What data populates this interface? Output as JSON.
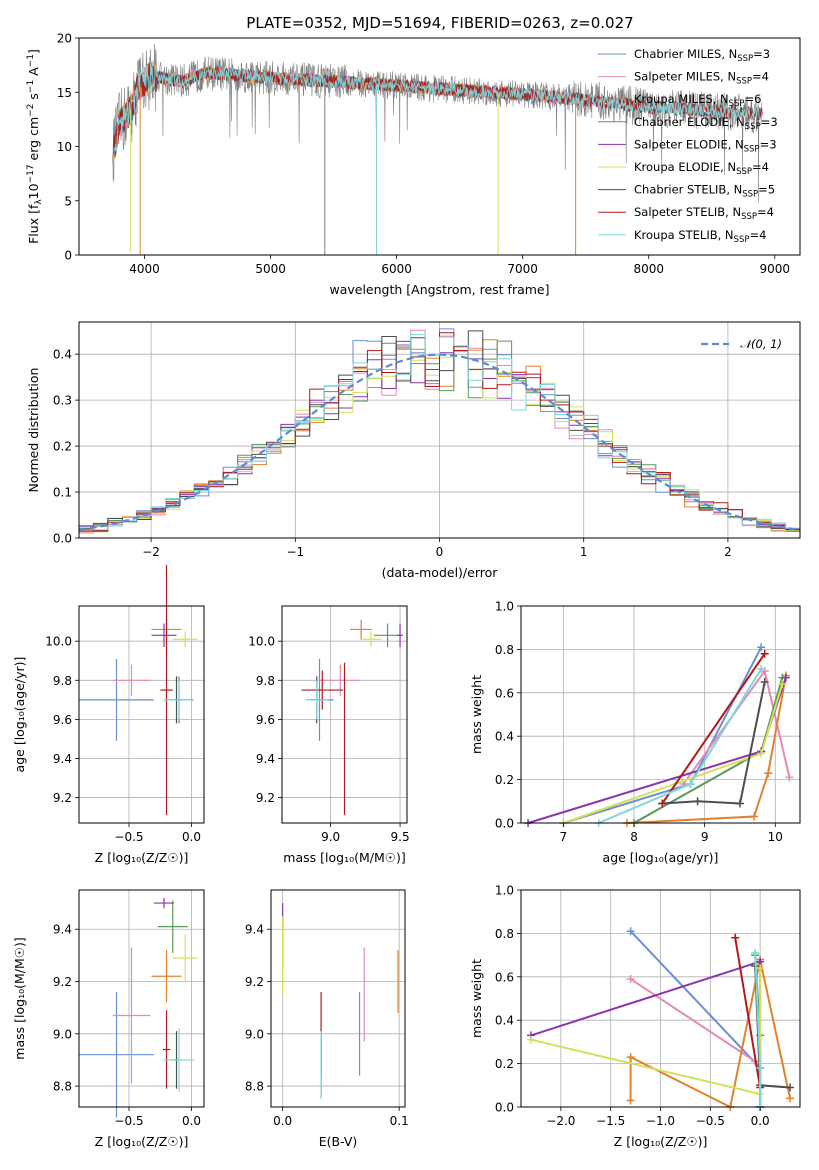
{
  "title": "PLATE=0352, MJD=51694, FIBERID=0263, z=0.027",
  "colors": {
    "chabrier_miles": "#6a8fd6",
    "salpeter_miles": "#e58ab2",
    "kroupa_miles": "#e0822e",
    "chabrier_elodie": "#5a9a5a",
    "salpeter_elodie": "#8a35ad",
    "kroupa_elodie": "#d4e157",
    "chabrier_stelib": "#4d4d4d",
    "salpeter_stelib": "#b21a1a",
    "kroupa_stelib": "#7fd6dc",
    "spectrum_data": "#808080",
    "normal_curve": "#5b8bd6",
    "grid": "#b0b0b0"
  },
  "chart_data": [
    {
      "id": "spectrum",
      "type": "line",
      "xlabel": "wavelength [Angstrom, rest frame]",
      "ylabel": "Flux [f_λ10^-17 erg cm^-2 s^-1 A^-1]",
      "xlim": [
        3480,
        9200
      ],
      "ylim": [
        0,
        20
      ],
      "xticks": [
        4000,
        5000,
        6000,
        7000,
        8000,
        9000
      ],
      "yticks": [
        0,
        5,
        10,
        15,
        20
      ],
      "grid": false,
      "legend_position": "upper-right",
      "legend": [
        {
          "label": "Chabrier MILES, N",
          "sub": "SSP",
          "tail": "=3",
          "key": "chabrier_miles"
        },
        {
          "label": "Salpeter MILES, N",
          "sub": "SSP",
          "tail": "=4",
          "key": "salpeter_miles"
        },
        {
          "label": "Kroupa MILES, N",
          "sub": "SSP",
          "tail": "=6",
          "key": "kroupa_miles"
        },
        {
          "label": "Chabrier ELODIE, N",
          "sub": "SSP",
          "tail": "=3",
          "key": "chabrier_elodie"
        },
        {
          "label": "Salpeter ELODIE, N",
          "sub": "SSP",
          "tail": "=3",
          "key": "salpeter_elodie"
        },
        {
          "label": "Kroupa ELODIE, N",
          "sub": "SSP",
          "tail": "=4",
          "key": "kroupa_elodie"
        },
        {
          "label": "Chabrier STELIB, N",
          "sub": "SSP",
          "tail": "=5",
          "key": "chabrier_stelib"
        },
        {
          "label": "Salpeter STELIB, N",
          "sub": "SSP",
          "tail": "=4",
          "key": "salpeter_stelib"
        },
        {
          "label": "Kroupa STELIB, N",
          "sub": "SSP",
          "tail": "=4",
          "key": "kroupa_stelib"
        }
      ],
      "data_range": [
        3750,
        8900
      ],
      "model_ranges": {
        "chabrier_miles": [
          3750,
          7410
        ],
        "salpeter_miles": [
          3750,
          7410
        ],
        "kroupa_miles": [
          3750,
          7410
        ],
        "chabrier_elodie": [
          3750,
          6800
        ],
        "salpeter_elodie": [
          3750,
          6800
        ],
        "kroupa_elodie": [
          3750,
          6800
        ],
        "chabrier_stelib": [
          3750,
          8900
        ],
        "salpeter_stelib": [
          3750,
          8900
        ],
        "kroupa_stelib": [
          3750,
          8900
        ]
      },
      "continuum": [
        [
          3750,
          9.5
        ],
        [
          3800,
          12.0
        ],
        [
          3900,
          13.5
        ],
        [
          3950,
          15.5
        ],
        [
          4050,
          16.5
        ],
        [
          4300,
          16.0
        ],
        [
          4500,
          16.8
        ],
        [
          5000,
          16.3
        ],
        [
          5500,
          16.0
        ],
        [
          6000,
          15.6
        ],
        [
          6500,
          15.2
        ],
        [
          7000,
          14.8
        ],
        [
          7500,
          14.3
        ],
        [
          8000,
          13.6
        ],
        [
          8500,
          13.3
        ],
        [
          8900,
          13.0
        ]
      ],
      "drops": [
        {
          "x": 3890,
          "y": 0.3,
          "key": "kroupa_elodie"
        },
        {
          "x": 3965,
          "y": 0.0,
          "key": "kroupa_miles"
        },
        {
          "x": 5430,
          "y": 0.0,
          "key": "spectrum_data"
        },
        {
          "x": 5840,
          "y": 0.0,
          "key": "kroupa_stelib"
        },
        {
          "x": 6805,
          "y": 0.0,
          "key": "kroupa_elodie"
        },
        {
          "x": 7420,
          "y": 0.0,
          "key": "kroupa_miles"
        }
      ]
    },
    {
      "id": "residuals",
      "type": "histogram",
      "xlabel": "(data-model)/error",
      "ylabel": "Normed distribution",
      "xlim": [
        -2.5,
        2.5
      ],
      "ylim": [
        0,
        0.47
      ],
      "xticks": [
        -2,
        -1,
        0,
        1,
        2
      ],
      "yticks": [
        0,
        0.1,
        0.2,
        0.3,
        0.4
      ],
      "grid": true,
      "legend_position": "upper-right",
      "legend": [
        {
          "label": "𝒩(0, 1)",
          "key": "normal_curve"
        }
      ],
      "bin_width": 0.1
    },
    {
      "id": "age-vs-z",
      "type": "errorbar",
      "xlabel": "Z [log₁₀(Z/Z☉)]",
      "ylabel": "age  [log₁₀(age/yr)]",
      "xlim": [
        -0.9,
        0.1
      ],
      "ylim": [
        9.07,
        10.18
      ],
      "xticks": [
        -0.5,
        0.0
      ],
      "yticks": [
        9.2,
        9.4,
        9.6,
        9.8,
        10.0
      ],
      "grid": true,
      "points": [
        {
          "key": "chabrier_miles",
          "x": -0.6,
          "y": 9.7,
          "xerr": 0.3,
          "yerr": 0.21
        },
        {
          "key": "salpeter_miles",
          "x": -0.48,
          "y": 9.8,
          "xerr": 0.15,
          "yerr": 0.08
        },
        {
          "key": "kroupa_miles",
          "x": -0.2,
          "y": 10.06,
          "xerr": 0.12,
          "yerr": 0.05
        },
        {
          "key": "chabrier_elodie",
          "x": -0.1,
          "y": 9.7,
          "xerr": 0.12,
          "yerr": 0.12
        },
        {
          "key": "salpeter_elodie",
          "x": -0.22,
          "y": 10.03,
          "xerr": 0.1,
          "yerr": 0.06
        },
        {
          "key": "kroupa_elodie",
          "x": -0.05,
          "y": 10.01,
          "xerr": 0.1,
          "yerr": 0.04
        },
        {
          "key": "chabrier_stelib",
          "x": -0.12,
          "y": 9.7,
          "xerr": 0.04,
          "yerr": 0.12
        },
        {
          "key": "salpeter_stelib",
          "x": -0.2,
          "y": 9.75,
          "xerr": 0.05,
          "yerr": 0.64
        },
        {
          "key": "kroupa_stelib",
          "x": -0.1,
          "y": 9.7,
          "xerr": 0.12,
          "yerr": 0.1
        }
      ]
    },
    {
      "id": "age-vs-mass",
      "type": "errorbar",
      "xlabel": "mass [log₁₀(M/M☉)]",
      "ylabel": "",
      "xlim": [
        8.65,
        9.55
      ],
      "ylim": [
        9.07,
        10.18
      ],
      "xticks": [
        9.0,
        9.5
      ],
      "yticks": [
        9.2,
        9.4,
        9.6,
        9.8,
        10.0
      ],
      "grid": true,
      "points": [
        {
          "key": "chabrier_miles",
          "x": 8.92,
          "y": 9.7,
          "xerr": 0.1,
          "yerr": 0.21
        },
        {
          "key": "salpeter_miles",
          "x": 9.07,
          "y": 9.8,
          "xerr": 0.15,
          "yerr": 0.08
        },
        {
          "key": "kroupa_miles",
          "x": 9.22,
          "y": 10.06,
          "xerr": 0.08,
          "yerr": 0.05
        },
        {
          "key": "chabrier_elodie",
          "x": 9.41,
          "y": 10.03,
          "xerr": 0.1,
          "yerr": 0.06
        },
        {
          "key": "salpeter_elodie",
          "x": 9.5,
          "y": 10.03,
          "xerr": 0.02,
          "yerr": 0.06
        },
        {
          "key": "kroupa_elodie",
          "x": 9.29,
          "y": 10.01,
          "xerr": 0.08,
          "yerr": 0.04
        },
        {
          "key": "chabrier_stelib",
          "x": 8.9,
          "y": 9.7,
          "xerr": 0.05,
          "yerr": 0.12
        },
        {
          "key": "salpeter_stelib",
          "x": 8.94,
          "y": 9.75,
          "xerr": 0.15,
          "yerr": 0.1
        },
        {
          "key": "salpeter_stelib",
          "x": 9.1,
          "y": 9.5,
          "xerr": 0.0,
          "yerr": 0.39
        },
        {
          "key": "kroupa_stelib",
          "x": 8.9,
          "y": 9.7,
          "xerr": 0.08,
          "yerr": 0.1
        }
      ]
    },
    {
      "id": "weight-vs-age",
      "type": "line",
      "xlabel": "age  [log₁₀(age/yr)]",
      "ylabel": "mass weight",
      "xlim": [
        6.4,
        10.35
      ],
      "ylim": [
        0,
        1.0
      ],
      "xticks": [
        7,
        8,
        9,
        10
      ],
      "yticks": [
        0.0,
        0.2,
        0.4,
        0.6,
        0.8,
        1.0
      ],
      "grid": true,
      "series": [
        {
          "key": "chabrier_miles",
          "points": [
            [
              7.0,
              0.0
            ],
            [
              8.8,
              0.18
            ],
            [
              9.8,
              0.81
            ]
          ]
        },
        {
          "key": "salpeter_miles",
          "points": [
            [
              8.7,
              0.18
            ],
            [
              9.85,
              0.7
            ],
            [
              10.2,
              0.21
            ]
          ]
        },
        {
          "key": "kroupa_miles",
          "points": [
            [
              7.9,
              0.0
            ],
            [
              9.7,
              0.03
            ],
            [
              9.9,
              0.23
            ],
            [
              10.15,
              0.68
            ]
          ]
        },
        {
          "key": "chabrier_elodie",
          "points": [
            [
              8.0,
              0.0
            ],
            [
              9.8,
              0.33
            ],
            [
              10.1,
              0.67
            ]
          ]
        },
        {
          "key": "salpeter_elodie",
          "points": [
            [
              6.5,
              0.0
            ],
            [
              9.8,
              0.33
            ],
            [
              10.15,
              0.67
            ]
          ]
        },
        {
          "key": "kroupa_elodie",
          "points": [
            [
              7.0,
              0.0
            ],
            [
              9.8,
              0.32
            ],
            [
              10.1,
              0.64
            ]
          ]
        },
        {
          "key": "chabrier_stelib",
          "points": [
            [
              8.4,
              0.09
            ],
            [
              8.9,
              0.1
            ],
            [
              9.5,
              0.09
            ],
            [
              9.85,
              0.65
            ]
          ]
        },
        {
          "key": "salpeter_stelib",
          "points": [
            [
              8.4,
              0.09
            ],
            [
              9.85,
              0.78
            ]
          ]
        },
        {
          "key": "kroupa_stelib",
          "points": [
            [
              7.5,
              0.0
            ],
            [
              8.8,
              0.18
            ],
            [
              9.8,
              0.71
            ]
          ]
        }
      ]
    },
    {
      "id": "mass-vs-z",
      "type": "errorbar",
      "xlabel": "Z [log₁₀(Z/Z☉)]",
      "ylabel": "mass [log₁₀(M/M☉)]",
      "xlim": [
        -0.9,
        0.1
      ],
      "ylim": [
        8.72,
        9.55
      ],
      "xticks": [
        -0.5,
        0.0
      ],
      "yticks": [
        8.8,
        9.0,
        9.2,
        9.4
      ],
      "grid": true,
      "points": [
        {
          "key": "chabrier_miles",
          "x": -0.6,
          "y": 8.92,
          "xerr": 0.3,
          "yerr": 0.24
        },
        {
          "key": "salpeter_miles",
          "x": -0.48,
          "y": 9.07,
          "xerr": 0.15,
          "yerr": 0.26
        },
        {
          "key": "kroupa_miles",
          "x": -0.2,
          "y": 9.22,
          "xerr": 0.12,
          "yerr": 0.1
        },
        {
          "key": "chabrier_elodie",
          "x": -0.15,
          "y": 9.41,
          "xerr": 0.12,
          "yerr": 0.1
        },
        {
          "key": "salpeter_elodie",
          "x": -0.22,
          "y": 9.5,
          "xerr": 0.08,
          "yerr": 0.02
        },
        {
          "key": "kroupa_elodie",
          "x": -0.05,
          "y": 9.29,
          "xerr": 0.1,
          "yerr": 0.09
        },
        {
          "key": "chabrier_stelib",
          "x": -0.12,
          "y": 8.9,
          "xerr": 0.04,
          "yerr": 0.11
        },
        {
          "key": "salpeter_stelib",
          "x": -0.2,
          "y": 8.94,
          "xerr": 0.03,
          "yerr": 0.15
        },
        {
          "key": "kroupa_stelib",
          "x": -0.1,
          "y": 8.9,
          "xerr": 0.12,
          "yerr": 0.12
        }
      ]
    },
    {
      "id": "mass-vs-ebv",
      "type": "errorbar",
      "xlabel": "E(B-V)",
      "ylabel": "",
      "xlim": [
        -0.01,
        0.105
      ],
      "ylim": [
        8.72,
        9.55
      ],
      "xticks": [
        0.0,
        0.1
      ],
      "yticks": [
        8.8,
        9.0,
        9.2,
        9.4
      ],
      "grid": true,
      "points": [
        {
          "key": "chabrier_miles",
          "x": 0.066,
          "y": 9.0,
          "xerr": 0.0,
          "yerr": 0.16
        },
        {
          "key": "salpeter_miles",
          "x": 0.07,
          "y": 9.15,
          "xerr": 0.0,
          "yerr": 0.18
        },
        {
          "key": "kroupa_miles",
          "x": 0.099,
          "y": 9.2,
          "xerr": 0.0,
          "yerr": 0.12
        },
        {
          "key": "chabrier_elodie",
          "x": 0.0,
          "y": 9.35,
          "xerr": 0.0,
          "yerr": 0.1
        },
        {
          "key": "salpeter_elodie",
          "x": 0.0,
          "y": 9.45,
          "xerr": 0.0,
          "yerr": 0.05
        },
        {
          "key": "kroupa_elodie",
          "x": 0.0,
          "y": 9.3,
          "xerr": 0.0,
          "yerr": 0.15
        },
        {
          "key": "chabrier_stelib",
          "x": 0.033,
          "y": 8.88,
          "xerr": 0.0,
          "yerr": 0.12
        },
        {
          "key": "salpeter_stelib",
          "x": 0.033,
          "y": 9.0,
          "xerr": 0.0,
          "yerr": 0.16
        },
        {
          "key": "kroupa_stelib",
          "x": 0.033,
          "y": 8.88,
          "xerr": 0.0,
          "yerr": 0.13
        }
      ]
    },
    {
      "id": "weight-vs-z",
      "type": "line",
      "xlabel": "Z [log₁₀(Z/Z☉)]",
      "ylabel": "mass weight",
      "xlim": [
        -2.4,
        0.4
      ],
      "ylim": [
        0,
        1.0
      ],
      "xticks": [
        -2.0,
        -1.5,
        -1.0,
        -0.5,
        0.0
      ],
      "yticks": [
        0.0,
        0.2,
        0.4,
        0.6,
        0.8,
        1.0
      ],
      "grid": true,
      "series": [
        {
          "key": "chabrier_miles",
          "points": [
            [
              -1.3,
              0.81
            ],
            [
              0.0,
              0.18
            ],
            [
              0.0,
              0.0
            ]
          ]
        },
        {
          "key": "salpeter_miles",
          "points": [
            [
              -1.3,
              0.59
            ],
            [
              -0.05,
              0.21
            ],
            [
              0.0,
              0.18
            ]
          ]
        },
        {
          "key": "kroupa_miles",
          "points": [
            [
              -1.3,
              0.03
            ],
            [
              -1.3,
              0.23
            ],
            [
              -0.3,
              0.0
            ],
            [
              0.0,
              0.68
            ],
            [
              0.3,
              0.04
            ]
          ]
        },
        {
          "key": "chabrier_elodie",
          "points": [
            [
              -0.05,
              0.7
            ],
            [
              0.0,
              0.33
            ],
            [
              0.0,
              0.0
            ]
          ]
        },
        {
          "key": "salpeter_elodie",
          "points": [
            [
              -2.3,
              0.33
            ],
            [
              0.0,
              0.67
            ],
            [
              0.0,
              0.0
            ]
          ]
        },
        {
          "key": "kroupa_elodie",
          "points": [
            [
              -2.3,
              0.31
            ],
            [
              0.0,
              0.06
            ],
            [
              0.0,
              0.64
            ]
          ]
        },
        {
          "key": "chabrier_stelib",
          "points": [
            [
              -0.05,
              0.65
            ],
            [
              0.0,
              0.1
            ],
            [
              0.3,
              0.09
            ]
          ]
        },
        {
          "key": "salpeter_stelib",
          "points": [
            [
              -0.25,
              0.78
            ],
            [
              0.0,
              0.09
            ]
          ]
        },
        {
          "key": "kroupa_stelib",
          "points": [
            [
              -0.05,
              0.71
            ],
            [
              0.0,
              0.18
            ],
            [
              0.0,
              0.0
            ]
          ]
        }
      ]
    }
  ]
}
